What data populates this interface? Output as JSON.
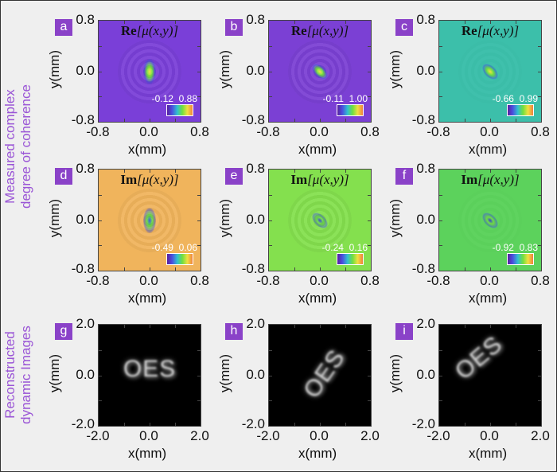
{
  "row_labels": [
    "Measured complex degree of coherence",
    "Reconstructed dynamic Images"
  ],
  "row_label_lines": [
    [
      "Measured complex",
      "degree of coherence"
    ],
    [
      "Reconstructed",
      "dynamic Images"
    ]
  ],
  "chart_data": [
    {
      "type": "heatmap",
      "panel": "a",
      "title_bold": "Re",
      "title_rest": "[μ(x,y)]",
      "xlabel": "x(mm)",
      "ylabel": "y(mm)",
      "xticks": [
        "-0.8",
        "0.0",
        "0.8"
      ],
      "yticks": [
        "0.8",
        "0.0",
        "-0.8"
      ],
      "xlim": [
        -0.8,
        0.8
      ],
      "ylim": [
        -0.8,
        0.8
      ],
      "colorbar": {
        "min": "-0.12",
        "max": "0.88"
      },
      "background": "#7a3fd8",
      "peak": "#f0e040",
      "spot_angle": 0
    },
    {
      "type": "heatmap",
      "panel": "b",
      "title_bold": "Re",
      "title_rest": "[μ(x,y)]",
      "xlabel": "x(mm)",
      "ylabel": "y(mm)",
      "xticks": [
        "-0.8",
        "0.0",
        "0.8"
      ],
      "yticks": [
        "0.8",
        "0.0",
        "-0.8"
      ],
      "xlim": [
        -0.8,
        0.8
      ],
      "ylim": [
        -0.8,
        0.8
      ],
      "colorbar": {
        "min": "-0.11",
        "max": "1.00"
      },
      "background": "#7b40d4",
      "peak": "#f0e040",
      "spot_angle": 45
    },
    {
      "type": "heatmap",
      "panel": "c",
      "title_bold": "Re",
      "title_rest": "[μ(x,y)]",
      "xlabel": "x(mm)",
      "ylabel": "y(mm)",
      "xticks": [
        "-0.8",
        "0.0",
        "0.8"
      ],
      "yticks": [
        "0.8",
        "0.0",
        "-0.8"
      ],
      "xlim": [
        -0.8,
        0.8
      ],
      "ylim": [
        -0.8,
        0.8
      ],
      "colorbar": {
        "min": "-0.66",
        "max": "0.99"
      },
      "background": "#3cbfaa",
      "peak": "#f0e040",
      "spot_angle": 45
    },
    {
      "type": "heatmap",
      "panel": "d",
      "title_bold": "Im",
      "title_rest": "[μ(x,y)]",
      "xlabel": "x(mm)",
      "ylabel": "y(mm)",
      "xticks": [
        "-0.8",
        "0.0",
        "0.8"
      ],
      "yticks": [
        "0.8",
        "0.0",
        "-0.8"
      ],
      "xlim": [
        -0.8,
        0.8
      ],
      "ylim": [
        -0.8,
        0.8
      ],
      "colorbar": {
        "min": "-0.49",
        "max": "0.06"
      },
      "background": "#f0b45c",
      "peak": "#3050e0",
      "spot_angle": 0
    },
    {
      "type": "heatmap",
      "panel": "e",
      "title_bold": "Im",
      "title_rest": "[μ(x,y)]",
      "xlabel": "x(mm)",
      "ylabel": "y(mm)",
      "xticks": [
        "-0.8",
        "0.0",
        "0.8"
      ],
      "yticks": [
        "0.8",
        "0.0",
        "-0.8"
      ],
      "xlim": [
        -0.8,
        0.8
      ],
      "ylim": [
        -0.8,
        0.8
      ],
      "colorbar": {
        "min": "-0.24",
        "max": "0.16"
      },
      "background": "#84e04e",
      "peak": "#3040d0",
      "spot_angle": 45
    },
    {
      "type": "heatmap",
      "panel": "f",
      "title_bold": "Im",
      "title_rest": "[μ(x,y)]",
      "xlabel": "x(mm)",
      "ylabel": "y(mm)",
      "xticks": [
        "-0.8",
        "0.0",
        "0.8"
      ],
      "yticks": [
        "0.8",
        "0.0",
        "-0.8"
      ],
      "xlim": [
        -0.8,
        0.8
      ],
      "ylim": [
        -0.8,
        0.8
      ],
      "colorbar": {
        "min": "-0.92",
        "max": "0.83"
      },
      "background": "#5cd25c",
      "peak": "#3040d0",
      "spot_angle": 45
    },
    {
      "type": "heatmap",
      "panel": "g",
      "image_text": "OES",
      "text_angle": 0,
      "xlabel": "x(mm)",
      "ylabel": "y(mm)",
      "xticks": [
        "-2.0",
        "0.0",
        "2.0"
      ],
      "yticks": [
        "2.0",
        "0.0",
        "-2.0"
      ],
      "xlim": [
        -2.0,
        2.0
      ],
      "ylim": [
        -2.0,
        2.0
      ],
      "background": "#000000"
    },
    {
      "type": "heatmap",
      "panel": "h",
      "image_text": "OES",
      "text_angle": -55,
      "xlabel": "x(mm)",
      "ylabel": "y(mm)",
      "xticks": [
        "-2.0",
        "0.0",
        "2.0"
      ],
      "yticks": [
        "2.0",
        "0.0",
        "-2.0"
      ],
      "xlim": [
        -2.0,
        2.0
      ],
      "ylim": [
        -2.0,
        2.0
      ],
      "background": "#000000"
    },
    {
      "type": "heatmap",
      "panel": "i",
      "image_text": "OES",
      "text_angle": -40,
      "xlabel": "x(mm)",
      "ylabel": "y(mm)",
      "xticks": [
        "-2.0",
        "0.0",
        "2.0"
      ],
      "yticks": [
        "2.0",
        "0.0",
        "-2.0"
      ],
      "xlim": [
        -2.0,
        2.0
      ],
      "ylim": [
        -2.0,
        2.0
      ],
      "background": "#000000"
    }
  ]
}
